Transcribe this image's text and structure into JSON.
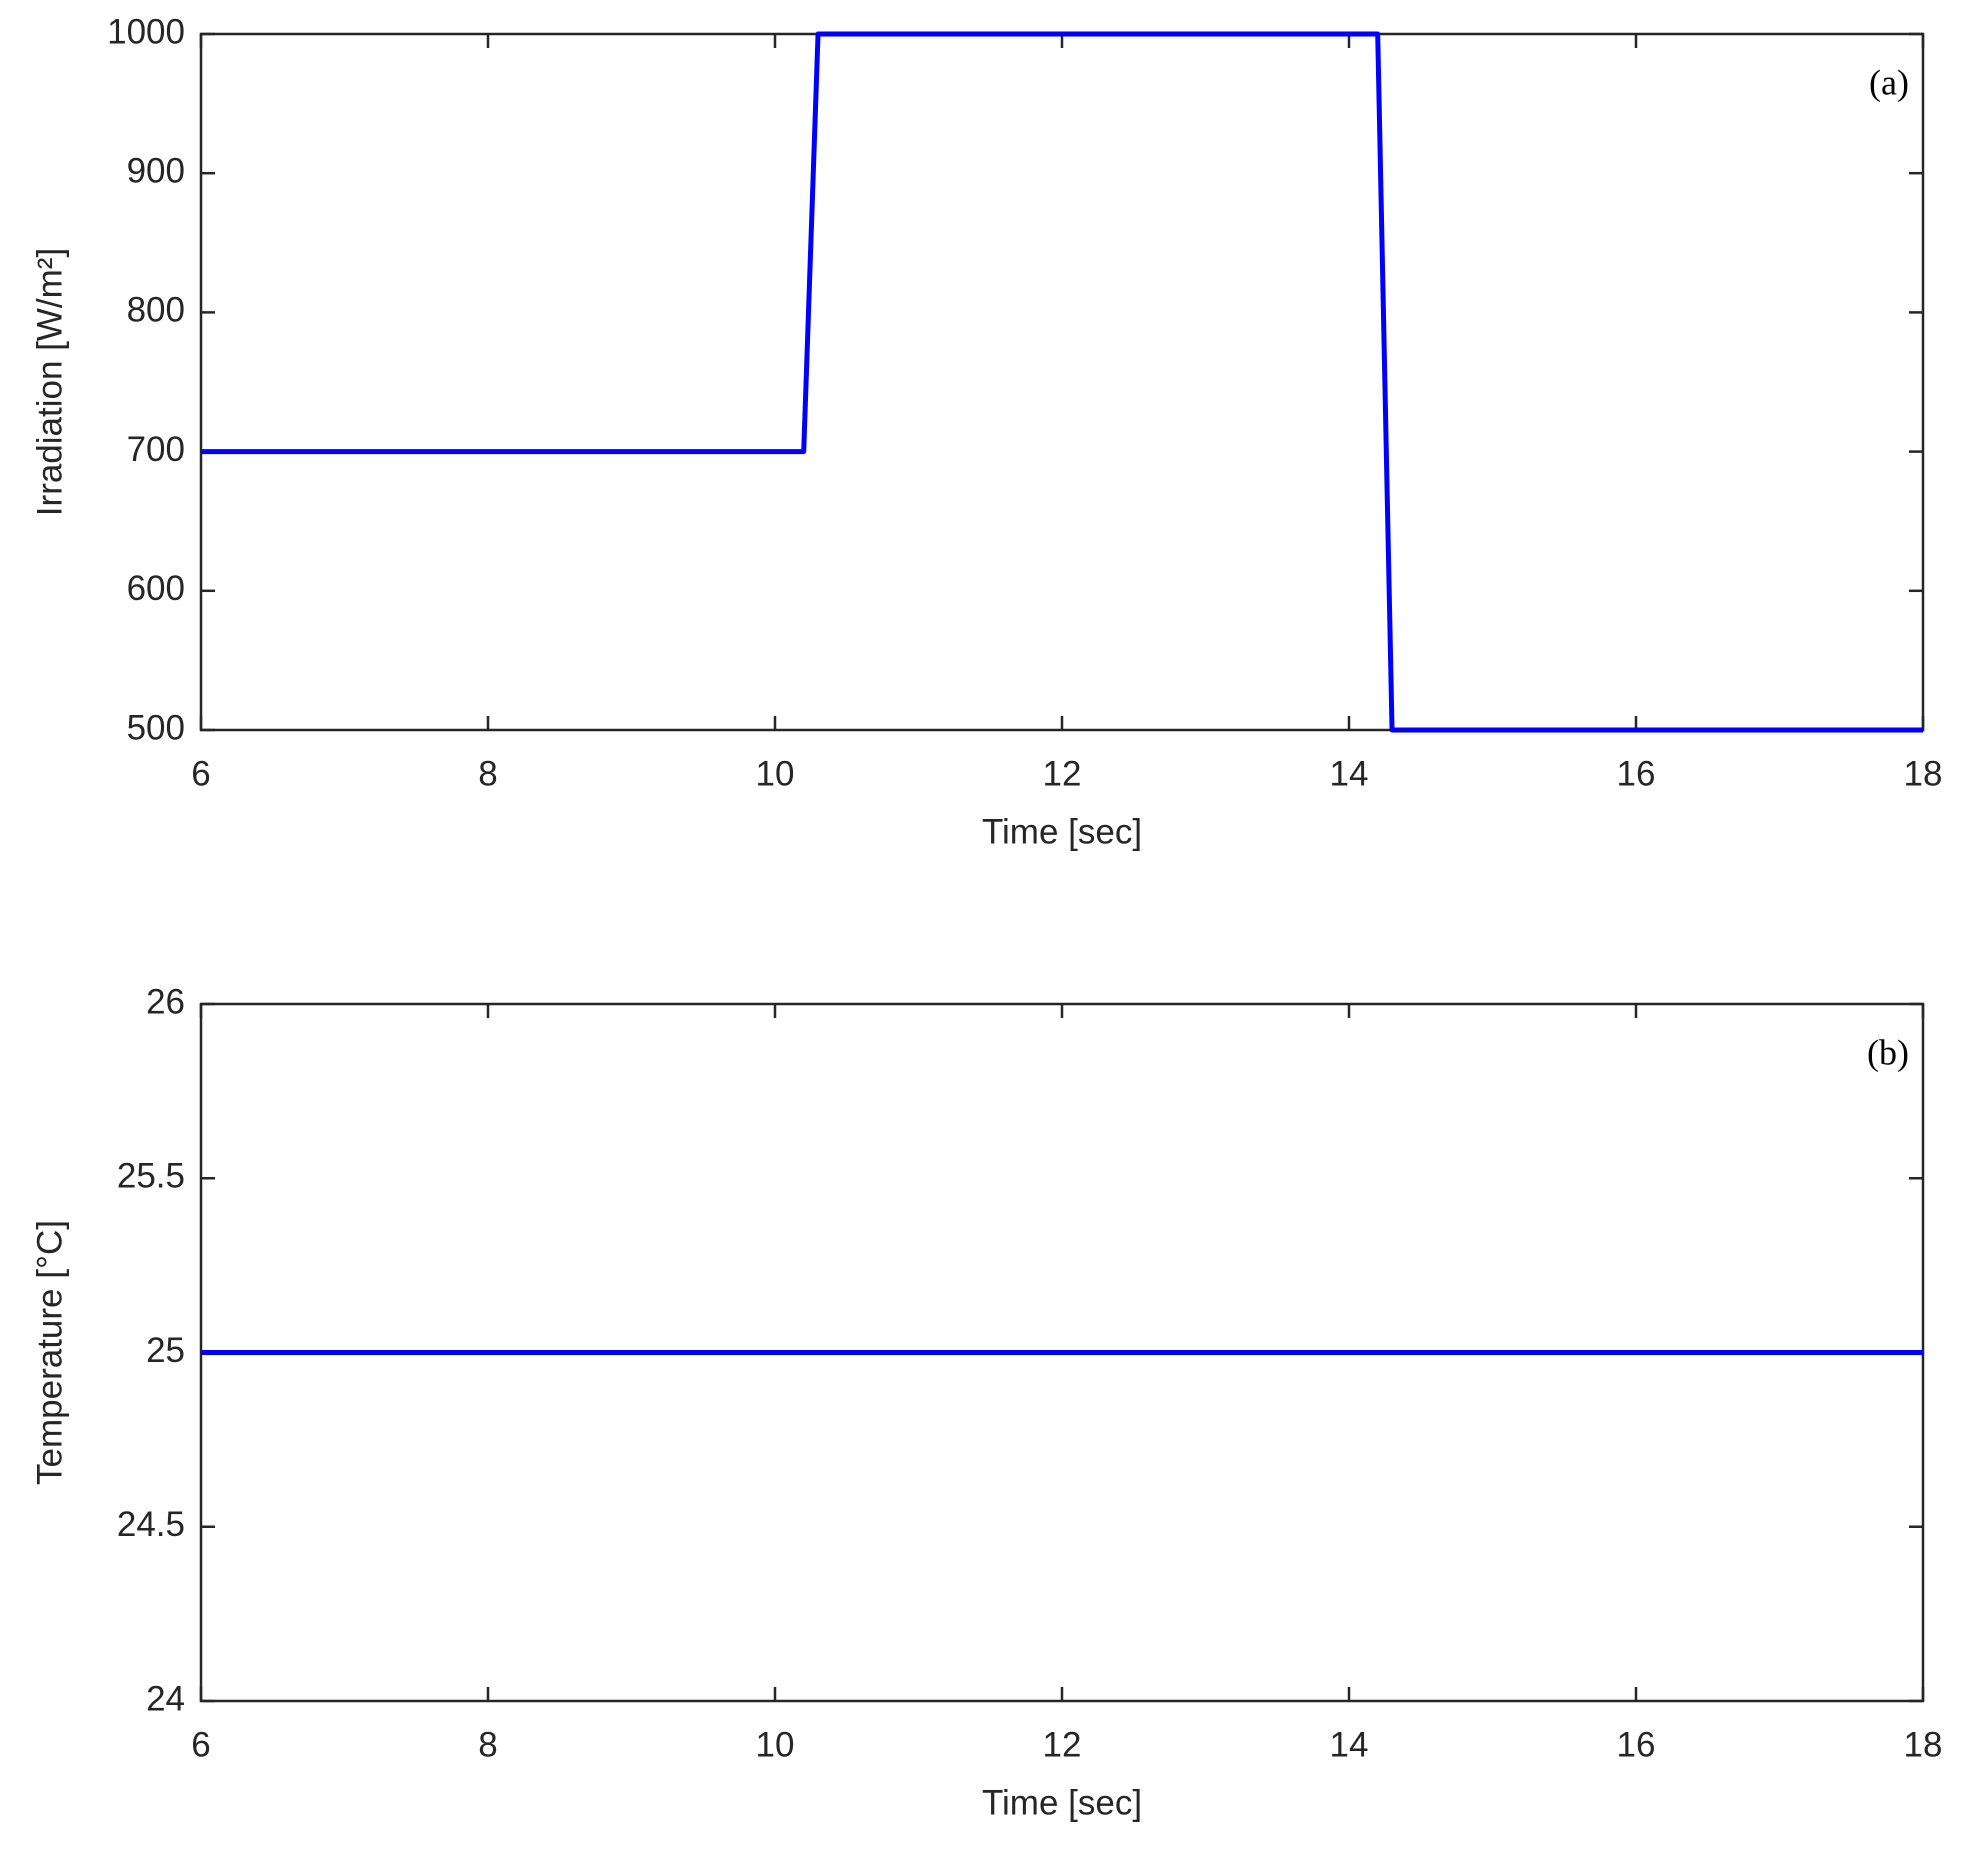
{
  "chart_data": [
    {
      "type": "line",
      "annotation": "(a)",
      "x_label": "Time [sec]",
      "y_label": "Irradiation [W/m²]",
      "x": [
        6,
        10.2,
        10.3,
        14.2,
        14.3,
        18
      ],
      "series": [
        {
          "name": "Irradiation",
          "color": "#0000ff",
          "values": [
            700,
            700,
            1000,
            1000,
            500,
            500
          ]
        }
      ],
      "xlim": [
        6,
        18
      ],
      "xticks": [
        6,
        8,
        10,
        12,
        14,
        16,
        18
      ],
      "ylim": [
        500,
        1000
      ],
      "yticks": [
        500,
        600,
        700,
        800,
        900,
        1000
      ]
    },
    {
      "type": "line",
      "annotation": "(b)",
      "x_label": "Time [sec]",
      "y_label": "Temperature [°C]",
      "x": [
        6,
        18
      ],
      "series": [
        {
          "name": "Temperature",
          "color": "#0000ff",
          "values": [
            25,
            25
          ]
        }
      ],
      "xlim": [
        6,
        18
      ],
      "xticks": [
        6,
        8,
        10,
        12,
        14,
        16,
        18
      ],
      "ylim": [
        24,
        26
      ],
      "yticks": [
        24,
        24.5,
        25,
        25.5,
        26
      ]
    }
  ]
}
